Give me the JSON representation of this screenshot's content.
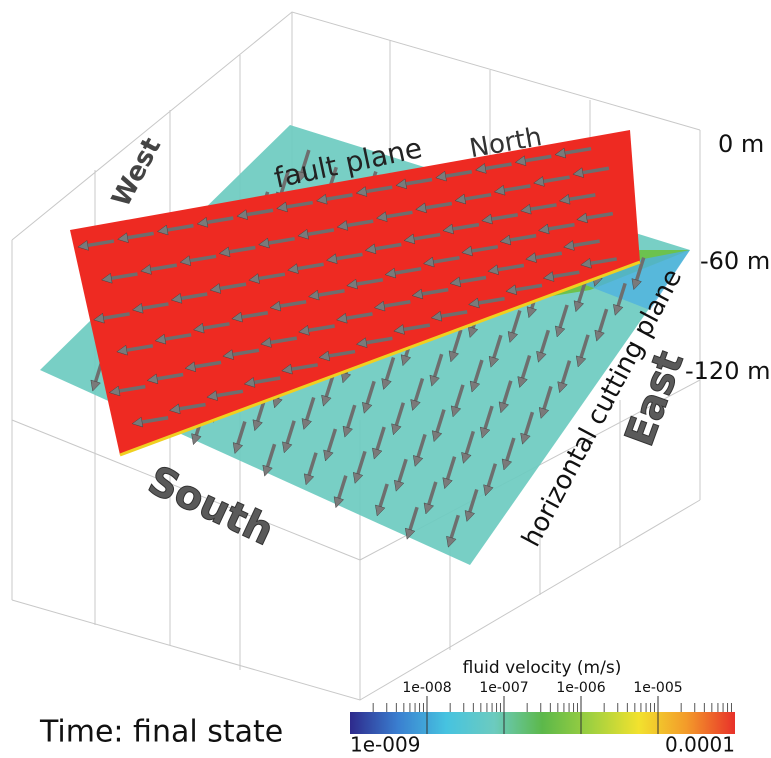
{
  "labels": {
    "fault_plane": "fault plane",
    "north": "North",
    "west": "West",
    "south": "South",
    "east": "East",
    "horizontal_plane": "horizontal cutting plane"
  },
  "depth_labels": [
    "0 m",
    "-60 m",
    "-120 m"
  ],
  "time_label": "Time: final state",
  "colorbar": {
    "title": "fluid velocity (m/s)",
    "scale": "log",
    "range": [
      1e-09,
      0.0001
    ],
    "range_labels": [
      "1e-009",
      "0.0001"
    ],
    "ticks": [
      {
        "value": 1e-08,
        "label": "1e-008"
      },
      {
        "value": 1e-07,
        "label": "1e-007"
      },
      {
        "value": 1e-06,
        "label": "1e-006"
      },
      {
        "value": 1e-05,
        "label": "1e-005"
      }
    ],
    "colors": [
      "#2e2a8c",
      "#3a7fd0",
      "#46c3e0",
      "#6ccbbf",
      "#5cb84a",
      "#9fd040",
      "#f2e22e",
      "#f39a2a",
      "#e8312a"
    ]
  }
}
